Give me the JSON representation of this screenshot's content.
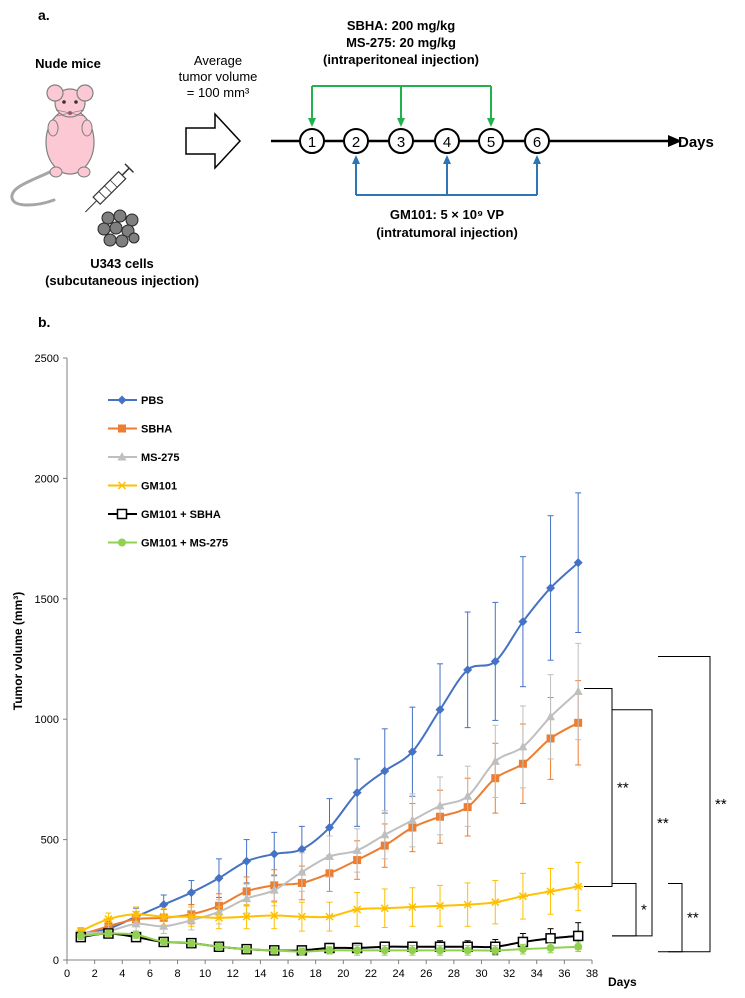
{
  "panel_a": {
    "label": "a.",
    "mice_title": "Nude mice",
    "cells_line1": "U343 cells",
    "cells_line2": "(subcutaneous injection)",
    "avg_line1": "Average",
    "avg_line2": "tumor volume",
    "avg_line3": "= 100 mm³",
    "green_line1": "SBHA: 200 mg/kg",
    "green_line2": "MS-275: 20 mg/kg",
    "green_line3": "(intraperitoneal injection)",
    "blue_line1": "GM101: 5 × 10⁹ VP",
    "blue_line2": "(intratumoral injection)",
    "days_label": "Days",
    "timeline_steps": [
      "1",
      "2",
      "3",
      "4",
      "5",
      "6"
    ],
    "green_targets": [
      "1",
      "3",
      "5"
    ],
    "blue_targets": [
      "2",
      "4",
      "6"
    ],
    "green_color": "#22b14c",
    "blue_color": "#2e75b6"
  },
  "panel_b": {
    "label": "b."
  },
  "chart_data": {
    "type": "line",
    "xlabel": "Days",
    "ylabel": "Tumor volume (mm³)",
    "xlim": [
      0,
      38
    ],
    "ylim": [
      0,
      2500
    ],
    "xticks": [
      "0",
      "2",
      "4",
      "6",
      "8",
      "10",
      "12",
      "14",
      "16",
      "18",
      "20",
      "22",
      "24",
      "26",
      "28",
      "30",
      "32",
      "34",
      "36",
      "38"
    ],
    "yticks": [
      "0",
      "500",
      "1000",
      "1500",
      "2000",
      "2500"
    ],
    "x": [
      1,
      3,
      5,
      7,
      9,
      11,
      13,
      15,
      17,
      19,
      21,
      23,
      25,
      27,
      29,
      31,
      33,
      35,
      37
    ],
    "legend_position": "top-left",
    "series": [
      {
        "name": "PBS",
        "color": "#4472c4",
        "marker": "diamond",
        "values": [
          110,
          130,
          180,
          230,
          280,
          340,
          410,
          440,
          460,
          550,
          695,
          785,
          865,
          1040,
          1205,
          1240,
          1405,
          1545,
          1650
        ],
        "errors": [
          20,
          30,
          35,
          40,
          50,
          80,
          90,
          90,
          95,
          120,
          140,
          175,
          185,
          190,
          240,
          245,
          270,
          300,
          290
        ]
      },
      {
        "name": "SBHA",
        "color": "#ed7d31",
        "marker": "square",
        "values": [
          105,
          140,
          170,
          175,
          190,
          225,
          285,
          310,
          320,
          360,
          415,
          475,
          550,
          595,
          635,
          755,
          815,
          920,
          985
        ],
        "errors": [
          20,
          25,
          30,
          35,
          40,
          50,
          60,
          65,
          70,
          75,
          80,
          90,
          100,
          110,
          120,
          145,
          165,
          170,
          175
        ]
      },
      {
        "name": "MS-275",
        "color": "#bfbfbf",
        "marker": "triangle",
        "values": [
          110,
          120,
          150,
          140,
          165,
          200,
          255,
          290,
          365,
          430,
          455,
          520,
          580,
          640,
          680,
          825,
          885,
          1010,
          1115
        ],
        "errors": [
          20,
          25,
          30,
          30,
          40,
          50,
          60,
          65,
          80,
          85,
          90,
          100,
          110,
          120,
          125,
          150,
          170,
          175,
          200
        ]
      },
      {
        "name": "GM101",
        "color": "#ffc000",
        "marker": "asterisk",
        "values": [
          120,
          170,
          190,
          180,
          180,
          175,
          180,
          185,
          180,
          180,
          210,
          215,
          220,
          225,
          230,
          240,
          265,
          285,
          305
        ],
        "errors": [
          15,
          25,
          30,
          35,
          40,
          45,
          50,
          55,
          60,
          60,
          70,
          80,
          80,
          85,
          90,
          90,
          95,
          95,
          100
        ]
      },
      {
        "name": "GM101 + SBHA",
        "color": "#000000",
        "marker": "open-square",
        "values": [
          95,
          110,
          95,
          75,
          70,
          55,
          45,
          40,
          40,
          50,
          50,
          55,
          55,
          55,
          55,
          55,
          75,
          90,
          100
        ],
        "errors": [
          15,
          15,
          15,
          15,
          15,
          15,
          15,
          15,
          15,
          15,
          20,
          20,
          20,
          25,
          25,
          30,
          35,
          40,
          55
        ]
      },
      {
        "name": "GM101 + MS-275",
        "color": "#92d050",
        "marker": "circle",
        "values": [
          100,
          110,
          105,
          75,
          70,
          55,
          45,
          40,
          35,
          40,
          40,
          40,
          40,
          40,
          40,
          40,
          45,
          50,
          55
        ],
        "errors": [
          15,
          15,
          15,
          15,
          15,
          15,
          15,
          15,
          15,
          15,
          20,
          20,
          20,
          20,
          20,
          20,
          20,
          20,
          20
        ]
      }
    ],
    "significance": [
      {
        "label": "**",
        "from": "MS-275",
        "to": "GM101"
      },
      {
        "label": "*",
        "from": "GM101",
        "to": "GM101 + SBHA"
      },
      {
        "label": "**",
        "from": "SBHA",
        "to": "GM101 + SBHA"
      },
      {
        "label": "**",
        "from": "GM101",
        "to": "GM101 + MS-275"
      },
      {
        "label": "**",
        "from": "MS-275",
        "to": "GM101 + MS-275"
      }
    ]
  }
}
